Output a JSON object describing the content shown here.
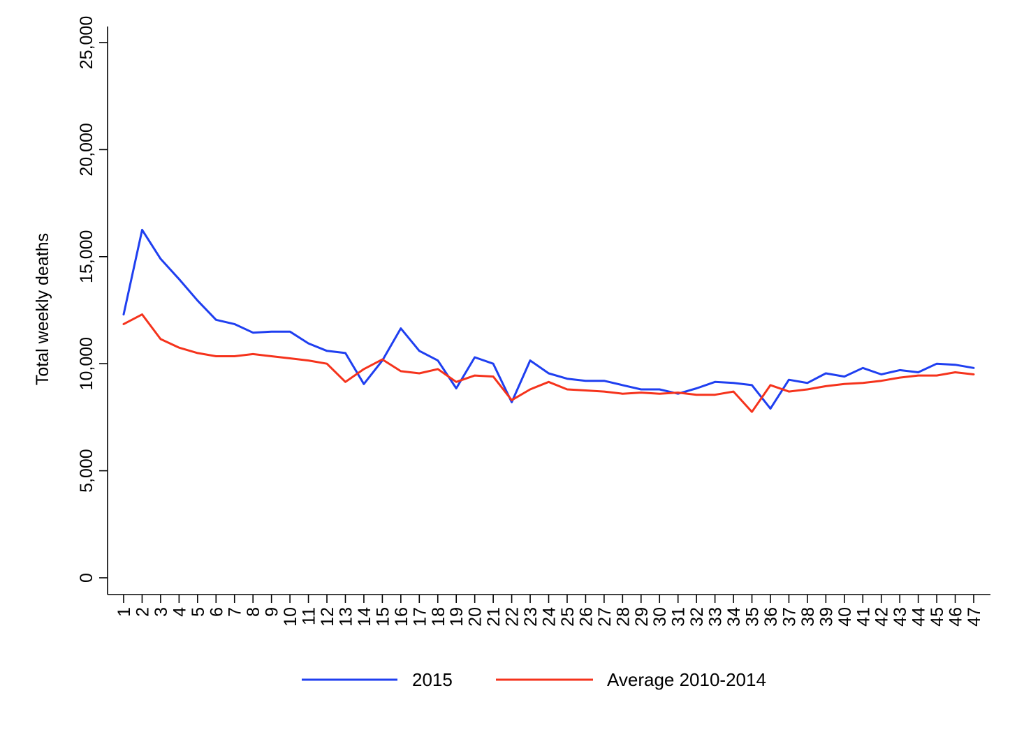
{
  "chart_data": {
    "type": "line",
    "title": "",
    "xlabel": "",
    "ylabel": "Total weekly deaths",
    "ylim": [
      0,
      25000
    ],
    "yticks": [
      0,
      5000,
      10000,
      15000,
      20000,
      25000
    ],
    "ytick_labels": [
      "0",
      "5,000",
      "10,000",
      "15,000",
      "20,000",
      "25,000"
    ],
    "x": [
      1,
      2,
      3,
      4,
      5,
      6,
      7,
      8,
      9,
      10,
      11,
      12,
      13,
      14,
      15,
      16,
      17,
      18,
      19,
      20,
      21,
      22,
      23,
      24,
      25,
      26,
      27,
      28,
      29,
      30,
      31,
      32,
      33,
      34,
      35,
      36,
      37,
      38,
      39,
      40,
      41,
      42,
      43,
      44,
      45,
      46,
      47
    ],
    "xtick_labels": [
      "1",
      "2",
      "3",
      "4",
      "5",
      "6",
      "7",
      "8",
      "9",
      "10",
      "11",
      "12",
      "13",
      "14",
      "15",
      "16",
      "17",
      "18",
      "19",
      "20",
      "21",
      "22",
      "23",
      "24",
      "25",
      "26",
      "27",
      "28",
      "29",
      "30",
      "31",
      "32",
      "33",
      "34",
      "35",
      "36",
      "37",
      "38",
      "39",
      "40",
      "41",
      "42",
      "43",
      "44",
      "45",
      "46",
      "47"
    ],
    "grid": false,
    "legend_position": "bottom",
    "series": [
      {
        "name": "2015",
        "color": "#1f3ff0",
        "values": [
          12300,
          16250,
          14900,
          13950,
          12950,
          12050,
          11850,
          11450,
          11500,
          11500,
          10950,
          10600,
          10500,
          9050,
          10150,
          11650,
          10600,
          10150,
          8850,
          10300,
          10000,
          8200,
          10150,
          9550,
          9300,
          9200,
          9200,
          9000,
          8800,
          8800,
          8600,
          8850,
          9150,
          9100,
          9000,
          7900,
          9250,
          9100,
          9550,
          9400,
          9800,
          9500,
          9700,
          9600,
          10000,
          9950,
          9800
        ]
      },
      {
        "name": "Average 2010-2014",
        "color": "#f5331c",
        "values": [
          11850,
          12300,
          11150,
          10750,
          10500,
          10350,
          10350,
          10450,
          10350,
          10250,
          10150,
          10000,
          9150,
          9750,
          10200,
          9650,
          9550,
          9750,
          9150,
          9450,
          9400,
          8300,
          8800,
          9150,
          8800,
          8750,
          8700,
          8600,
          8650,
          8600,
          8650,
          8550,
          8550,
          8700,
          7750,
          9000,
          8700,
          8800,
          8950,
          9050,
          9100,
          9200,
          9350,
          9450,
          9450,
          9600,
          9500
        ]
      }
    ]
  }
}
